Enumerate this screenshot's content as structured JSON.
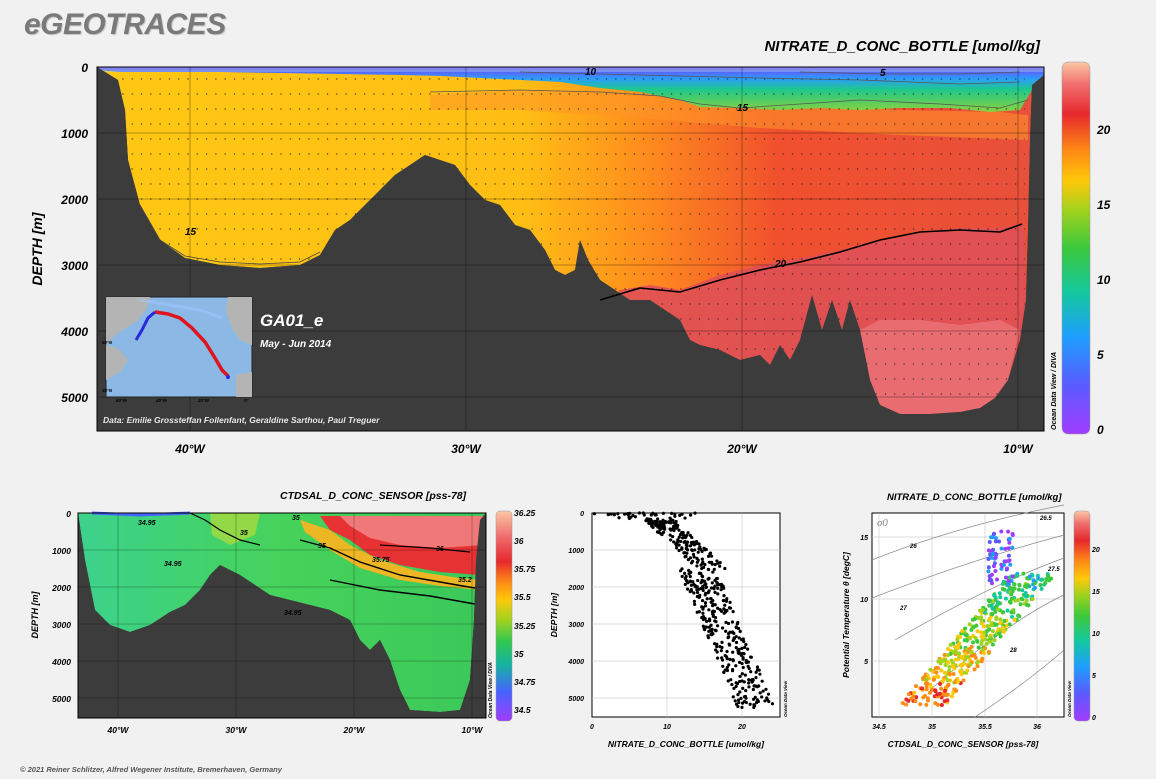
{
  "header": {
    "brand": "eGEOTRACES",
    "footer": "© 2021 Reiner Schlitzer, Alfred Wegener Institute, Bremerhaven, Germany"
  },
  "colors": {
    "background": "#f1f1f1",
    "seafloor": "#3a3a3a",
    "scale_low": "#a03cff",
    "scale_mid": "#ffc40a",
    "scale_high": "#e6282d"
  },
  "chart_data": [
    {
      "type": "heatmap",
      "title": "NITRATE_D_CONC_BOTTLE [umol/kg]",
      "ylabel": "DEPTH [m]",
      "y_ticks": [
        "0",
        "1000",
        "2000",
        "3000",
        "4000",
        "5000"
      ],
      "ylim": [
        0,
        5500
      ],
      "x_ticks": [
        "40°W",
        "30°W",
        "20°W",
        "10°W"
      ],
      "xlim": [
        -44,
        -9
      ],
      "colorbar_ticks": [
        "0",
        "5",
        "10",
        "15",
        "20"
      ],
      "colorbar_range": [
        0,
        24
      ],
      "contours": [
        "5",
        "10",
        "15",
        "15",
        "20"
      ],
      "watermark": "Ocean Data View / DIVA",
      "inset": {
        "section": "GA01_e",
        "period": "May - Jun 2014",
        "lat_labels": [
          "50°N",
          "35°N"
        ],
        "lon_labels": [
          "60°W",
          "40°W",
          "20°W",
          "0°"
        ]
      },
      "credits": "Data: Emilie Grossteffan Follenfant, Geraldine Sarthou, Paul Treguer"
    },
    {
      "type": "heatmap",
      "title": "CTDSAL_D_CONC_SENSOR [pss-78]",
      "ylabel": "DEPTH [m]",
      "y_ticks": [
        "0",
        "1000",
        "2000",
        "3000",
        "4000",
        "5000"
      ],
      "ylim": [
        0,
        5500
      ],
      "x_ticks": [
        "40°W",
        "30°W",
        "20°W",
        "10°W"
      ],
      "xlim": [
        -44,
        -9
      ],
      "colorbar_ticks": [
        "34.5",
        "34.75",
        "35",
        "35.25",
        "35.5",
        "35.75",
        "36",
        "36.25"
      ],
      "colorbar_range": [
        34.5,
        36.3
      ],
      "contours": [
        "34.95",
        "35",
        "34.95",
        "35",
        "34.95",
        "35.2",
        "36",
        "35.75",
        "35"
      ],
      "watermark": "Ocean Data View / DIVA"
    },
    {
      "type": "scatter",
      "xlabel": "NITRATE_D_CONC_BOTTLE [umol/kg]",
      "ylabel": "DEPTH [m]",
      "x_ticks": [
        "0",
        "10",
        "20"
      ],
      "y_ticks": [
        "0",
        "1000",
        "2000",
        "3000",
        "4000",
        "5000"
      ],
      "xlim": [
        0,
        25
      ],
      "ylim": [
        0,
        5500
      ],
      "watermark": "Ocean Data View"
    },
    {
      "type": "scatter",
      "title": "NITRATE_D_CONC_BOTTLE [umol/kg]",
      "xlabel": "CTDSAL_D_CONC_SENSOR [pss-78]",
      "ylabel": "Potential Temperature θ [degC]",
      "x_ticks": [
        "34.5",
        "35",
        "35.5",
        "36"
      ],
      "y_ticks": [
        "5",
        "10",
        "15"
      ],
      "xlim": [
        34.4,
        36.3
      ],
      "ylim": [
        1,
        18
      ],
      "colorbar_ticks": [
        "0",
        "5",
        "10",
        "15",
        "20"
      ],
      "colorbar_range": [
        0,
        24
      ],
      "isopycnal_label": "σ0",
      "isopycnals": [
        "26",
        "26.5",
        "27",
        "27.5",
        "28"
      ],
      "watermark": "Ocean Data View"
    }
  ]
}
